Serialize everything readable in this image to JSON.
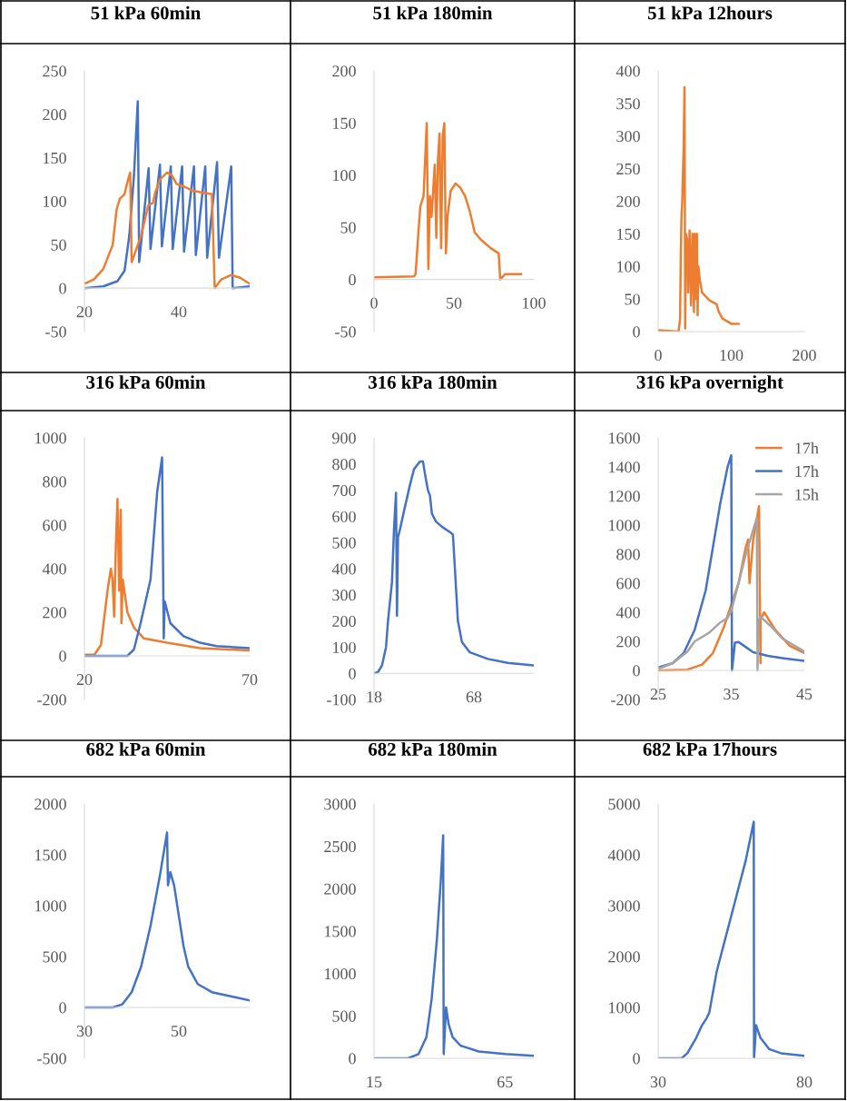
{
  "chart_data": [
    {
      "type": "line",
      "title": "51 kPa 60min",
      "xlim": [
        20,
        55
      ],
      "xticks": [
        20,
        40
      ],
      "ylim": [
        -50,
        250
      ],
      "yticks": [
        -50,
        0,
        50,
        100,
        150,
        200,
        250
      ],
      "series": [
        {
          "color": "#4472c4",
          "x": [
            20,
            24,
            27,
            28.5,
            29.5,
            30.5,
            31.3,
            31.6,
            33.6,
            34,
            36,
            36.4,
            38.3,
            38.7,
            40.7,
            41.1,
            43.2,
            43.6,
            45.6,
            46,
            48.1,
            48.5,
            51.1,
            51.4,
            55
          ],
          "values": [
            0,
            2,
            8,
            20,
            60,
            130,
            215,
            30,
            138,
            45,
            142,
            48,
            140,
            45,
            140,
            42,
            140,
            38,
            140,
            35,
            145,
            35,
            140,
            0,
            2
          ]
        },
        {
          "color": "#ed7d31",
          "x": [
            20,
            22,
            24,
            26,
            26.8,
            27.5,
            28.5,
            29,
            29.7,
            30,
            31,
            32,
            33.5,
            34.5,
            35,
            36,
            37.5,
            38.5,
            39.5,
            41,
            43,
            45,
            47,
            47.6,
            49,
            51,
            53,
            55
          ],
          "values": [
            5,
            10,
            22,
            50,
            90,
            103,
            108,
            120,
            133,
            30,
            45,
            60,
            95,
            98,
            110,
            125,
            133,
            130,
            120,
            117,
            112,
            110,
            108,
            0,
            10,
            15,
            12,
            5
          ]
        }
      ]
    },
    {
      "type": "line",
      "title": "51 kPa 180min",
      "xlim": [
        0,
        100
      ],
      "xticks": [
        0,
        50,
        100
      ],
      "ylim": [
        -50,
        200
      ],
      "yticks": [
        -50,
        0,
        50,
        100,
        150,
        200
      ],
      "series": [
        {
          "color": "#ed7d31",
          "x": [
            0,
            25,
            26,
            28,
            29,
            31,
            33,
            34,
            35,
            36,
            38,
            39,
            40,
            41,
            42,
            43,
            44,
            45,
            46,
            48,
            51,
            54,
            57,
            60,
            63,
            67,
            73,
            78,
            79,
            82,
            92
          ],
          "values": [
            2,
            3,
            5,
            50,
            70,
            80,
            150,
            10,
            80,
            60,
            110,
            40,
            115,
            140,
            30,
            138,
            150,
            25,
            60,
            85,
            92,
            88,
            80,
            65,
            45,
            38,
            30,
            25,
            0,
            5,
            5
          ]
        }
      ]
    },
    {
      "type": "line",
      "title": "51 kPa 12hours",
      "xlim": [
        0,
        200
      ],
      "xticks": [
        0,
        100,
        200
      ],
      "ylim": [
        0,
        400
      ],
      "yticks": [
        0,
        50,
        100,
        150,
        200,
        250,
        300,
        350,
        400
      ],
      "series": [
        {
          "color": "#ed7d31",
          "x": [
            0,
            28,
            30,
            31,
            32,
            33,
            35,
            36,
            37,
            38,
            40,
            41,
            43,
            45,
            47,
            49,
            50,
            51,
            53,
            54,
            55,
            57,
            60,
            70,
            80,
            83,
            88,
            100,
            110
          ],
          "values": [
            2,
            0,
            20,
            120,
            180,
            200,
            290,
            375,
            5,
            150,
            140,
            60,
            155,
            40,
            150,
            30,
            150,
            50,
            150,
            25,
            100,
            80,
            60,
            48,
            42,
            30,
            20,
            12,
            12
          ]
        }
      ]
    },
    {
      "type": "line",
      "title": "316 kPa 60min",
      "xlim": [
        20,
        70
      ],
      "xticks": [
        20,
        70
      ],
      "ylim": [
        -200,
        1000
      ],
      "yticks": [
        -200,
        0,
        200,
        400,
        600,
        800,
        1000
      ],
      "series": [
        {
          "color": "#ed7d31",
          "x": [
            20,
            23,
            25,
            27,
            28,
            28.5,
            29,
            29.5,
            30,
            30.5,
            31,
            31.2,
            31.6,
            33,
            35,
            38,
            45,
            55,
            70
          ],
          "values": [
            5,
            5,
            50,
            300,
            400,
            350,
            180,
            500,
            720,
            300,
            670,
            150,
            350,
            200,
            130,
            80,
            60,
            35,
            25
          ]
        },
        {
          "color": "#4472c4",
          "x": [
            20,
            33,
            35,
            37,
            40,
            42,
            43.5,
            44,
            44.3,
            46,
            50,
            55,
            60,
            70
          ],
          "values": [
            0,
            0,
            30,
            150,
            350,
            750,
            910,
            80,
            250,
            150,
            90,
            60,
            45,
            35
          ]
        }
      ]
    },
    {
      "type": "line",
      "title": "316 kPa 180min",
      "xlim": [
        18,
        98
      ],
      "xticks": [
        18,
        68
      ],
      "ylim": [
        -100,
        900
      ],
      "yticks": [
        -100,
        0,
        100,
        200,
        300,
        400,
        500,
        600,
        700,
        800,
        900
      ],
      "series": [
        {
          "color": "#4472c4",
          "x": [
            18,
            20,
            22,
            24,
            25,
            27,
            28,
            29,
            29.5,
            30,
            31,
            33,
            36,
            38,
            41,
            42.5,
            44,
            45,
            46,
            47,
            49,
            52,
            56,
            57.5,
            58.5,
            60,
            62,
            66,
            75,
            85,
            98
          ],
          "values": [
            0,
            5,
            30,
            100,
            200,
            350,
            550,
            690,
            220,
            520,
            550,
            620,
            720,
            780,
            810,
            810,
            740,
            700,
            680,
            610,
            580,
            560,
            540,
            530,
            400,
            200,
            120,
            80,
            55,
            40,
            30
          ]
        }
      ]
    },
    {
      "type": "line",
      "title": "316 kPa overnight",
      "xlim": [
        25,
        45
      ],
      "xticks": [
        25,
        35,
        45
      ],
      "ylim": [
        -200,
        1600
      ],
      "yticks": [
        -200,
        0,
        200,
        400,
        600,
        800,
        1000,
        1200,
        1400,
        1600
      ],
      "legend": "top right",
      "series": [
        {
          "name": "17h",
          "color": "#ed7d31",
          "x": [
            25,
            29,
            31,
            32.5,
            34,
            35,
            36,
            37,
            37.3,
            37.5,
            38,
            38.8,
            39,
            39,
            39.5,
            41,
            43,
            45
          ],
          "values": [
            0,
            5,
            40,
            120,
            300,
            450,
            600,
            850,
            900,
            600,
            900,
            1130,
            50,
            350,
            400,
            280,
            170,
            120
          ]
        },
        {
          "name": "17h",
          "color": "#4472c4",
          "x": [
            25,
            27,
            28.5,
            30,
            31.5,
            32.5,
            33.5,
            34.5,
            35,
            35.1,
            35.5,
            36,
            37,
            38,
            40,
            42,
            45
          ],
          "values": [
            20,
            50,
            120,
            280,
            550,
            850,
            1150,
            1400,
            1480,
            0,
            190,
            195,
            160,
            125,
            100,
            85,
            65
          ]
        },
        {
          "name": "15h",
          "color": "#a5a5a5",
          "x": [
            25,
            27,
            29,
            30,
            31,
            32,
            33.5,
            34.5,
            35,
            36,
            37,
            38.5,
            38.6,
            38.7,
            39,
            40.5,
            42,
            45
          ],
          "values": [
            10,
            50,
            130,
            200,
            230,
            260,
            330,
            360,
            410,
            600,
            800,
            1050,
            0,
            330,
            370,
            300,
            220,
            130
          ]
        }
      ]
    },
    {
      "type": "line",
      "title": "682 kPa 60min",
      "xlim": [
        30,
        65
      ],
      "xticks": [
        30,
        50
      ],
      "ylim": [
        -500,
        2000
      ],
      "yticks": [
        -500,
        0,
        500,
        1000,
        1500,
        2000
      ],
      "series": [
        {
          "color": "#4472c4",
          "x": [
            30,
            36,
            38,
            40,
            42,
            44,
            46,
            47.5,
            47.7,
            48.2,
            49,
            50,
            51,
            52,
            54,
            57,
            61,
            65
          ],
          "values": [
            0,
            0,
            30,
            150,
            400,
            800,
            1300,
            1720,
            1200,
            1330,
            1200,
            900,
            600,
            400,
            230,
            150,
            110,
            70
          ]
        }
      ]
    },
    {
      "type": "line",
      "title": "682 kPa 180min",
      "xlim": [
        15,
        76
      ],
      "xticks": [
        15,
        65
      ],
      "ylim": [
        0,
        3000
      ],
      "yticks": [
        0,
        500,
        1000,
        1500,
        2000,
        2500,
        3000
      ],
      "series": [
        {
          "color": "#4472c4",
          "x": [
            15,
            28,
            32,
            35,
            37,
            39,
            40.5,
            41.4,
            41.6,
            42.5,
            43.5,
            45,
            48,
            55,
            65,
            76
          ],
          "values": [
            0,
            0,
            50,
            250,
            700,
            1400,
            2100,
            2630,
            50,
            600,
            400,
            250,
            150,
            80,
            50,
            30
          ]
        }
      ]
    },
    {
      "type": "line",
      "title": "682 kPa 17hours",
      "xlim": [
        30,
        80
      ],
      "xticks": [
        30,
        80
      ],
      "ylim": [
        0,
        5000
      ],
      "yticks": [
        0,
        1000,
        2000,
        3000,
        4000,
        5000
      ],
      "series": [
        {
          "color": "#4472c4",
          "x": [
            30,
            38,
            40,
            43,
            45,
            46.5,
            47.5,
            50,
            55,
            60,
            62.7,
            62.8,
            63.5,
            65,
            68,
            72,
            80
          ],
          "values": [
            0,
            0,
            100,
            400,
            650,
            780,
            900,
            1700,
            2800,
            3900,
            4650,
            0,
            650,
            400,
            180,
            100,
            50
          ]
        }
      ]
    }
  ]
}
